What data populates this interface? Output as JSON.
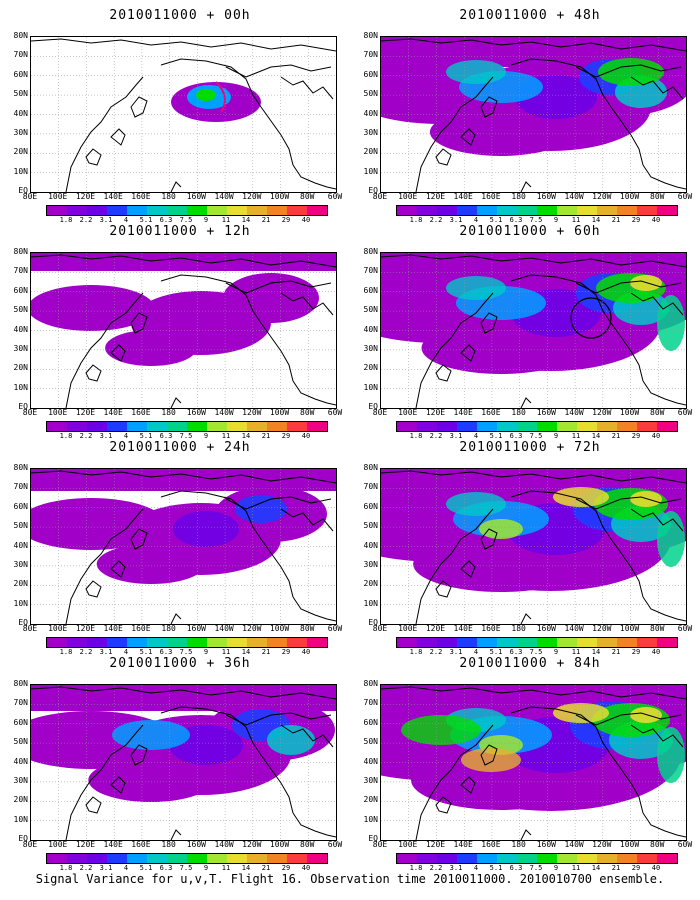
{
  "panels": [
    {
      "title": "2010011000 + 00h",
      "level": 0
    },
    {
      "title": "2010011000 + 12h",
      "level": 1
    },
    {
      "title": "2010011000 + 24h",
      "level": 2
    },
    {
      "title": "2010011000 + 36h",
      "level": 3
    },
    {
      "title": "2010011000 + 48h",
      "level": 4
    },
    {
      "title": "2010011000 + 60h",
      "level": 5
    },
    {
      "title": "2010011000 + 72h",
      "level": 6
    },
    {
      "title": "2010011000 + 84h",
      "level": 7
    }
  ],
  "lat_labels": [
    "80N",
    "70N",
    "60N",
    "50N",
    "40N",
    "30N",
    "20N",
    "10N",
    "EQ"
  ],
  "lon_labels": [
    "80E",
    "100E",
    "120E",
    "140E",
    "160E",
    "180",
    "160W",
    "140W",
    "120W",
    "100W",
    "80W",
    "60W"
  ],
  "colorbar": {
    "labels": [
      "1.8",
      "2.2",
      "3.1",
      "4",
      "5.1",
      "6.3",
      "7.5",
      "9",
      "11",
      "14",
      "21",
      "29",
      "40"
    ],
    "colors": [
      "#a000c8",
      "#8200dc",
      "#6e00e6",
      "#1e3cff",
      "#00a0ff",
      "#00c8c8",
      "#00d28c",
      "#00dc00",
      "#a0e632",
      "#e6dc32",
      "#e6af2d",
      "#f08228",
      "#fa3c3c",
      "#f00082"
    ]
  },
  "footer": "Signal Variance for u,v,T. Flight 16. Observation time 2010011000. 2010010700 ensemble."
}
